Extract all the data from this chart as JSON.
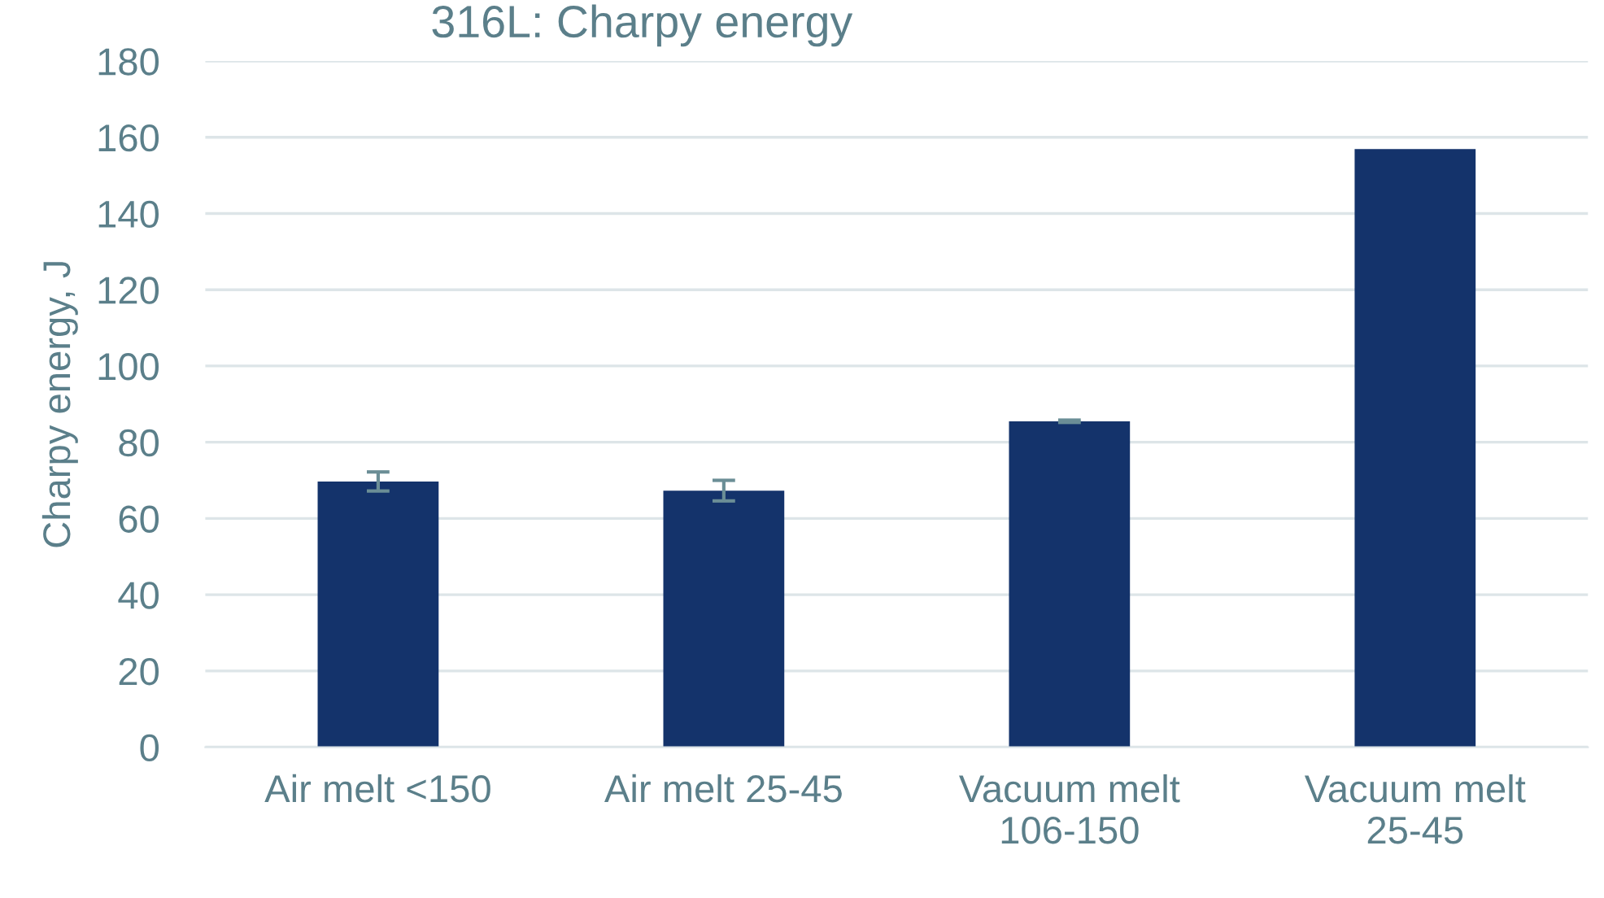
{
  "chart_data": {
    "type": "bar",
    "title": "316L: Charpy energy",
    "ylabel": "Charpy energy, J",
    "categories": [
      "Air melt <150",
      "Air melt 25-45",
      "Vacuum melt 106-150",
      "Vacuum melt 25-45"
    ],
    "values": [
      69.7,
      67.3,
      85.5,
      156.9
    ],
    "errors": [
      2.5,
      2.7,
      0.3,
      null
    ],
    "color": "#14336b",
    "ylim": [
      0,
      180
    ],
    "yticks": [
      0,
      20,
      40,
      60,
      80,
      100,
      120,
      140,
      160,
      180
    ],
    "grid": "y"
  }
}
